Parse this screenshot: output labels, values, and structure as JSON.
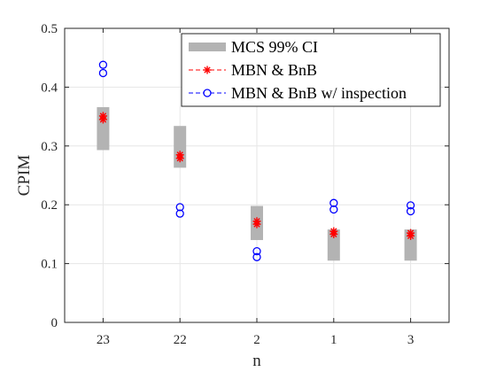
{
  "chart_data": {
    "type": "scatter",
    "xlabel": "n",
    "ylabel": "CPIM",
    "categories": [
      "23",
      "22",
      "2",
      "1",
      "3"
    ],
    "ylim": [
      0,
      0.5
    ],
    "yticks": [
      0,
      0.1,
      0.2,
      0.3,
      0.4,
      0.5
    ],
    "ytick_labels": [
      "0",
      "0.1",
      "0.2",
      "0.3",
      "0.4",
      "0.5"
    ],
    "grid": true,
    "legend_position": "top-right",
    "series": [
      {
        "name": "MCS 99% CI",
        "kind": "interval",
        "color": "#b3b3b3",
        "low": [
          0.293,
          0.263,
          0.14,
          0.105,
          0.105
        ],
        "high": [
          0.366,
          0.334,
          0.198,
          0.158,
          0.158
        ]
      },
      {
        "name": "MBN & BnB",
        "kind": "points",
        "marker": "star",
        "color": "#ff0000",
        "values": [
          [
            0.345,
            0.351
          ],
          [
            0.279,
            0.285
          ],
          [
            0.167,
            0.172
          ],
          [
            0.15,
            0.155
          ],
          [
            0.147,
            0.152
          ]
        ]
      },
      {
        "name": "MBN & BnB w/ inspection",
        "kind": "points",
        "marker": "circle",
        "color": "#0000ff",
        "values": [
          [
            0.424,
            0.438
          ],
          [
            0.185,
            0.196
          ],
          [
            0.111,
            0.121
          ],
          [
            0.192,
            0.203
          ],
          [
            0.189,
            0.199
          ]
        ]
      }
    ]
  }
}
